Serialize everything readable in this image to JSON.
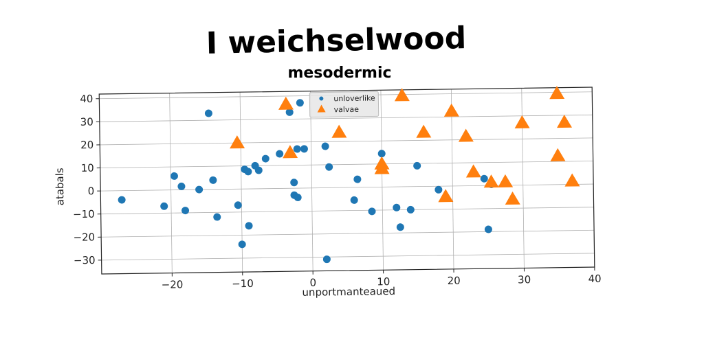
{
  "chart_data": {
    "type": "scatter",
    "title": "I weichselwood",
    "subtitle": "mesodermic",
    "xlabel": "unportmanteaued",
    "ylabel": "atabals",
    "xlim": [
      -30,
      40
    ],
    "ylim": [
      -36,
      42
    ],
    "xticks": [
      -20,
      -10,
      0,
      10,
      20,
      30,
      40
    ],
    "yticks": [
      -30,
      -20,
      -10,
      0,
      10,
      20,
      30,
      40
    ],
    "grid": true,
    "legend_position": "top-center",
    "series": [
      {
        "name": "unloverlike",
        "marker": "circle",
        "color": "#1f77b4",
        "points": [
          [
            -27,
            -4
          ],
          [
            -21,
            -7
          ],
          [
            -19.5,
            6
          ],
          [
            -18.5,
            1.5
          ],
          [
            -18,
            -9
          ],
          [
            -16,
            0
          ],
          [
            -14.5,
            33
          ],
          [
            -14,
            4
          ],
          [
            -13.5,
            -12
          ],
          [
            -10.5,
            -7
          ],
          [
            -10,
            -24
          ],
          [
            -9.5,
            8.5
          ],
          [
            -9,
            7.5
          ],
          [
            -9,
            -16
          ],
          [
            -8,
            10
          ],
          [
            -7.5,
            8
          ],
          [
            -6.5,
            13
          ],
          [
            -4.5,
            15
          ],
          [
            -3,
            33
          ],
          [
            -2.5,
            2.5
          ],
          [
            -2.5,
            -3
          ],
          [
            -2,
            17
          ],
          [
            -2,
            -4
          ],
          [
            -1.5,
            37
          ],
          [
            -1,
            17
          ],
          [
            2,
            18
          ],
          [
            2,
            -31
          ],
          [
            2.5,
            9
          ],
          [
            6,
            -5.5
          ],
          [
            6.5,
            3.5
          ],
          [
            8.5,
            -10.5
          ],
          [
            10,
            14.5
          ],
          [
            12,
            -9
          ],
          [
            12.5,
            -17.5
          ],
          [
            14,
            -10
          ],
          [
            15,
            9
          ],
          [
            18,
            -1.5
          ],
          [
            24.5,
            3
          ],
          [
            25,
            -19
          ],
          [
            25.5,
            0.5
          ]
        ]
      },
      {
        "name": "valvae",
        "marker": "triangle",
        "color": "#ff7f0e",
        "points": [
          [
            -10.5,
            20
          ],
          [
            -3.5,
            36.5
          ],
          [
            -3,
            15.5
          ],
          [
            4,
            24
          ],
          [
            10,
            10
          ],
          [
            10,
            8
          ],
          [
            13,
            39.5
          ],
          [
            16,
            23.5
          ],
          [
            19,
            -4.5
          ],
          [
            20,
            32.5
          ],
          [
            22,
            21.5
          ],
          [
            23,
            6
          ],
          [
            25.5,
            1.5
          ],
          [
            27.5,
            1.5
          ],
          [
            28.5,
            -6
          ],
          [
            30,
            27
          ],
          [
            35,
            39.5
          ],
          [
            35,
            12.5
          ],
          [
            36,
            27
          ],
          [
            37,
            1.5
          ]
        ]
      }
    ]
  }
}
